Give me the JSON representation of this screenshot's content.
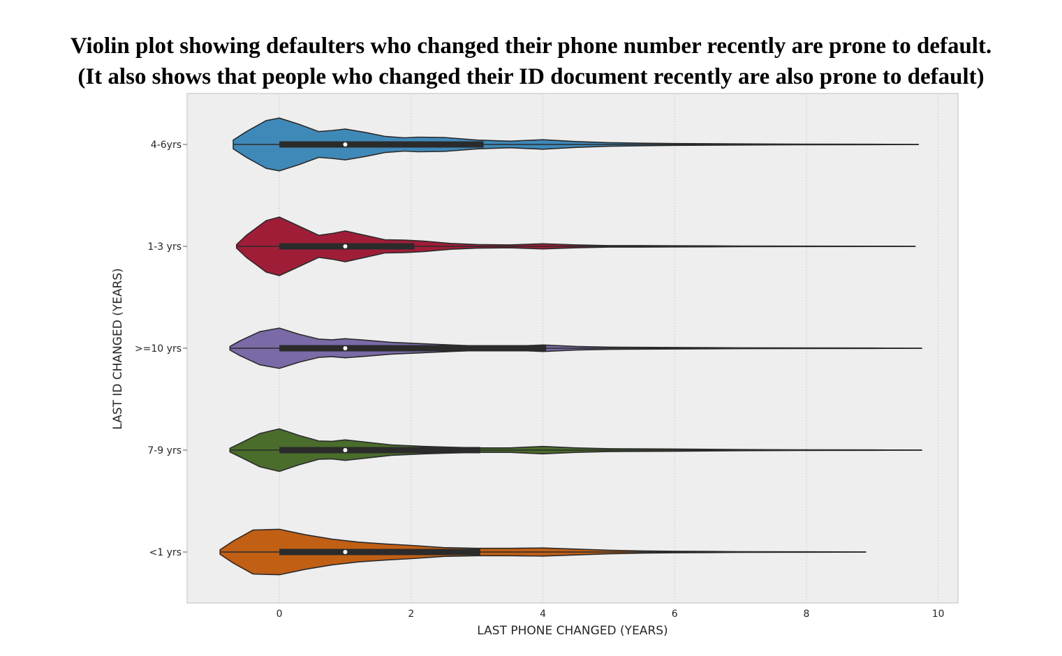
{
  "titles": {
    "line1": "Violin plot showing defaulters who changed their phone number recently are prone to default.",
    "line2": "(It also shows that people who changed their ID document recently are also prone to default)"
  },
  "chart_data": {
    "type": "violin",
    "orientation": "horizontal",
    "xlabel": "LAST PHONE CHANGED (YEARS)",
    "ylabel": "LAST ID CHANGED (YEARS)",
    "xlim": [
      -1.4,
      10.3
    ],
    "xticks": [
      0,
      2,
      4,
      6,
      8,
      10
    ],
    "grid": true,
    "background": "#eeeeee",
    "categories": [
      "4-6yrs",
      "1-3 yrs",
      ">=10 yrs",
      "7-9 yrs",
      "<1 yrs"
    ],
    "series": [
      {
        "category": "4-6yrs",
        "color": "#3f89b9",
        "min": -0.7,
        "max": 9.7,
        "q1": 0,
        "median": 1,
        "q3": 3.1,
        "density": [
          [
            -0.7,
            0.12
          ],
          [
            -0.5,
            0.35
          ],
          [
            -0.2,
            0.65
          ],
          [
            0,
            0.72
          ],
          [
            0.3,
            0.55
          ],
          [
            0.6,
            0.35
          ],
          [
            0.8,
            0.38
          ],
          [
            1,
            0.42
          ],
          [
            1.3,
            0.33
          ],
          [
            1.6,
            0.22
          ],
          [
            1.9,
            0.18
          ],
          [
            2.1,
            0.2
          ],
          [
            2.5,
            0.19
          ],
          [
            3,
            0.12
          ],
          [
            3.5,
            0.09
          ],
          [
            4,
            0.13
          ],
          [
            4.5,
            0.08
          ],
          [
            5,
            0.05
          ],
          [
            5.5,
            0.035
          ],
          [
            6,
            0.025
          ],
          [
            7,
            0.015
          ],
          [
            8,
            0.008
          ],
          [
            9,
            0.005
          ],
          [
            9.7,
            0.002
          ]
        ]
      },
      {
        "category": "1-3 yrs",
        "color": "#a01d38",
        "min": -0.65,
        "max": 9.65,
        "q1": 0,
        "median": 1,
        "q3": 2.05,
        "density": [
          [
            -0.65,
            0.05
          ],
          [
            -0.5,
            0.3
          ],
          [
            -0.2,
            0.7
          ],
          [
            0,
            0.8
          ],
          [
            0.3,
            0.55
          ],
          [
            0.6,
            0.3
          ],
          [
            0.8,
            0.35
          ],
          [
            1,
            0.42
          ],
          [
            1.3,
            0.3
          ],
          [
            1.6,
            0.18
          ],
          [
            1.9,
            0.17
          ],
          [
            2.2,
            0.14
          ],
          [
            2.6,
            0.08
          ],
          [
            3,
            0.05
          ],
          [
            3.5,
            0.04
          ],
          [
            4,
            0.07
          ],
          [
            4.5,
            0.04
          ],
          [
            5,
            0.02
          ],
          [
            5.5,
            0.02
          ],
          [
            6,
            0.015
          ],
          [
            7,
            0.01
          ],
          [
            8,
            0.006
          ],
          [
            9,
            0.004
          ],
          [
            9.65,
            0.002
          ]
        ]
      },
      {
        "category": ">=10 yrs",
        "color": "#7a6aa6",
        "min": -0.75,
        "max": 9.75,
        "q1": 0,
        "median": 1,
        "q3": 4.05,
        "density": [
          [
            -0.75,
            0.05
          ],
          [
            -0.6,
            0.2
          ],
          [
            -0.3,
            0.45
          ],
          [
            0,
            0.55
          ],
          [
            0.3,
            0.38
          ],
          [
            0.6,
            0.25
          ],
          [
            0.8,
            0.23
          ],
          [
            1,
            0.26
          ],
          [
            1.3,
            0.22
          ],
          [
            1.7,
            0.16
          ],
          [
            2.1,
            0.13
          ],
          [
            2.6,
            0.09
          ],
          [
            3,
            0.06
          ],
          [
            3.5,
            0.05
          ],
          [
            4,
            0.09
          ],
          [
            4.5,
            0.05
          ],
          [
            5,
            0.03
          ],
          [
            6,
            0.02
          ],
          [
            7,
            0.012
          ],
          [
            8,
            0.008
          ],
          [
            9,
            0.005
          ],
          [
            9.75,
            0.002
          ]
        ]
      },
      {
        "category": "7-9 yrs",
        "color": "#4a6d2c",
        "min": -0.75,
        "max": 9.75,
        "q1": 0,
        "median": 1,
        "q3": 3.05,
        "density": [
          [
            -0.75,
            0.05
          ],
          [
            -0.6,
            0.18
          ],
          [
            -0.3,
            0.45
          ],
          [
            0,
            0.58
          ],
          [
            0.3,
            0.4
          ],
          [
            0.6,
            0.25
          ],
          [
            0.8,
            0.24
          ],
          [
            1,
            0.28
          ],
          [
            1.3,
            0.22
          ],
          [
            1.7,
            0.14
          ],
          [
            2.2,
            0.1
          ],
          [
            2.6,
            0.08
          ],
          [
            3,
            0.06
          ],
          [
            3.5,
            0.06
          ],
          [
            4,
            0.1
          ],
          [
            4.5,
            0.06
          ],
          [
            5,
            0.04
          ],
          [
            6,
            0.03
          ],
          [
            7,
            0.015
          ],
          [
            8,
            0.008
          ],
          [
            9,
            0.005
          ],
          [
            9.75,
            0.002
          ]
        ]
      },
      {
        "category": "<1 yrs",
        "color": "#c15f15",
        "min": -0.9,
        "max": 8.9,
        "q1": 0,
        "median": 1,
        "q3": 3.05,
        "density": [
          [
            -0.9,
            0.06
          ],
          [
            -0.7,
            0.3
          ],
          [
            -0.4,
            0.6
          ],
          [
            0,
            0.62
          ],
          [
            0.4,
            0.47
          ],
          [
            0.8,
            0.35
          ],
          [
            1.2,
            0.27
          ],
          [
            1.6,
            0.22
          ],
          [
            2,
            0.18
          ],
          [
            2.5,
            0.12
          ],
          [
            3,
            0.1
          ],
          [
            3.5,
            0.1
          ],
          [
            4,
            0.11
          ],
          [
            4.5,
            0.08
          ],
          [
            5,
            0.05
          ],
          [
            5.5,
            0.03
          ],
          [
            6,
            0.02
          ],
          [
            7,
            0.01
          ],
          [
            8,
            0.005
          ],
          [
            8.9,
            0.002
          ]
        ]
      }
    ]
  }
}
